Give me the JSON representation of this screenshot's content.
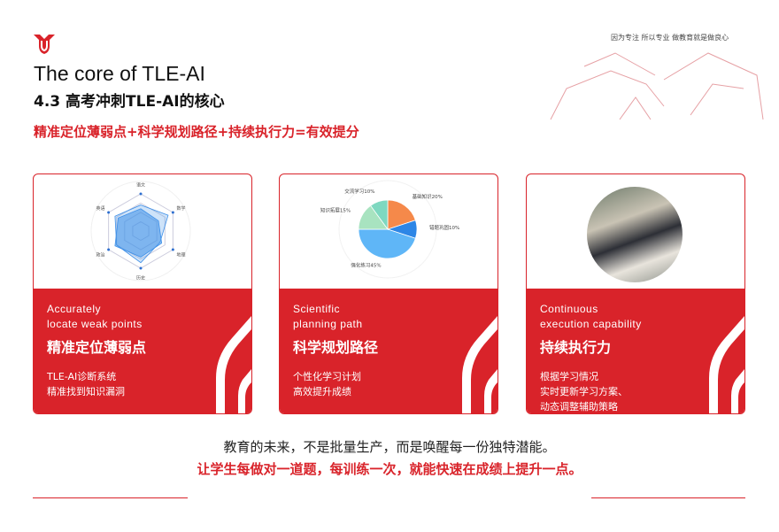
{
  "header": {
    "slogan": "因为专注 所以专业 做教育就是做良心",
    "title_en": "The core of TLE-AI",
    "title_cn": "4.3 高考冲刺TLE-AI的核心",
    "formula": "精准定位薄弱点+科学规划路径+持续执行力=有效提分"
  },
  "colors": {
    "accent": "#d9232a",
    "radar": "#3d8fe8",
    "pie": [
      "#f5894a",
      "#2d86e6",
      "#5fb6f7",
      "#a8e3c0",
      "#7ed8c0"
    ]
  },
  "cards": [
    {
      "en1": "Accurately",
      "en2": "locate weak points",
      "cn": "精准定位薄弱点",
      "desc1": "TLE-AI诊断系统",
      "desc2": "精准找到知识漏洞"
    },
    {
      "en1": "Scientific",
      "en2": "planning path",
      "cn": "科学规划路径",
      "desc1": "个性化学习计划",
      "desc2": "高效提升成绩"
    },
    {
      "en1": "Continuous",
      "en2": "execution capability",
      "cn": "持续执行力",
      "desc1": "根据学习情况",
      "desc2": "实时更新学习方案、",
      "desc3": "动态调整辅助策略"
    }
  ],
  "photo_icon": "student-studying-photo",
  "chart_data": [
    {
      "type": "radar",
      "categories": [
        "语文",
        "数学",
        "地理",
        "历史",
        "政治",
        "英语"
      ],
      "max": 100,
      "series": [
        {
          "values": [
            70,
            85,
            60,
            85,
            75,
            80
          ]
        },
        {
          "values": [
            60,
            55,
            65,
            70,
            80,
            70
          ]
        }
      ]
    },
    {
      "type": "pie",
      "labels": [
        "基础知识20%",
        "错题巩固10%",
        "强化练习45%",
        "知识拓展15%",
        "交流学习10%"
      ],
      "values": [
        20,
        10,
        45,
        15,
        10
      ]
    }
  ],
  "footer": {
    "line1": "教育的未来，不是批量生产，而是唤醒每一份独特潜能。",
    "line2": "让学生每做对一道题，每训练一次，就能快速在成绩上提升一点。"
  }
}
